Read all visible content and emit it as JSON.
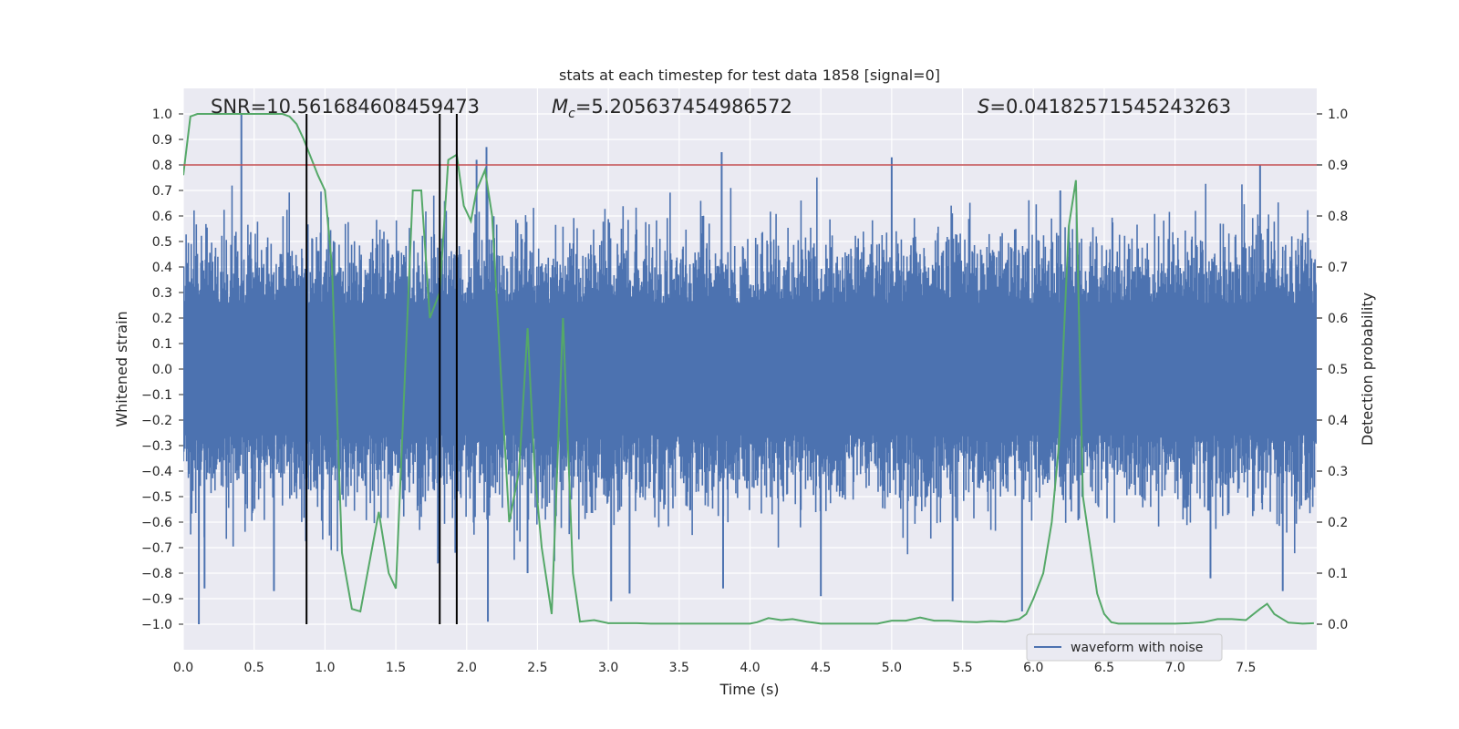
{
  "chart_data": {
    "type": "line",
    "title": "stats at each timestep for test data 1858 [signal=0]",
    "xlabel": "Time (s)",
    "ylabel_left": "Whitened strain",
    "ylabel_right": "Detection probability",
    "xlim": [
      0.0,
      8.0
    ],
    "ylim_left": [
      -1.1,
      1.1
    ],
    "ylim_right": [
      -0.05,
      1.05
    ],
    "x_ticks": [
      "0.0",
      "0.5",
      "1.0",
      "1.5",
      "2.0",
      "2.5",
      "3.0",
      "3.5",
      "4.0",
      "4.5",
      "5.0",
      "5.5",
      "6.0",
      "6.5",
      "7.0",
      "7.5"
    ],
    "y_ticks_left": [
      "-1.0",
      "-0.9",
      "-0.8",
      "-0.7",
      "-0.6",
      "-0.5",
      "-0.4",
      "-0.3",
      "-0.2",
      "-0.1",
      "0.0",
      "0.1",
      "0.2",
      "0.3",
      "0.4",
      "0.5",
      "0.6",
      "0.7",
      "0.8",
      "0.9",
      "1.0"
    ],
    "y_ticks_right": [
      "0.0",
      "0.1",
      "0.2",
      "0.3",
      "0.4",
      "0.5",
      "0.6",
      "0.7",
      "0.8",
      "0.9",
      "1.0"
    ],
    "grid": true,
    "legend": {
      "position": "bottom-right",
      "entries": [
        "waveform with noise"
      ]
    },
    "annotations": {
      "snr": "SNR=10.561684608459473",
      "mc_symbol": "M",
      "mc_sub": "c",
      "mc_value": "=5.205637454986572",
      "s_symbol": "S",
      "s_value": "=0.041825715452432​63"
    },
    "threshold": {
      "value": 0.9,
      "axis": "right",
      "color": "#c44e52"
    },
    "vertical_markers_x": [
      0.87,
      1.81,
      1.93
    ],
    "waveform": {
      "name": "waveform with noise",
      "color": "#4c72b0",
      "typical_amplitude": 0.42,
      "spikes": [
        {
          "x": 0.41,
          "y": 1.0
        },
        {
          "x": 0.11,
          "y": -1.0
        },
        {
          "x": 0.15,
          "y": -0.86
        },
        {
          "x": 0.64,
          "y": -0.87
        },
        {
          "x": 1.8,
          "y": -0.76
        },
        {
          "x": 1.92,
          "y": -0.72
        },
        {
          "x": 2.07,
          "y": 0.82
        },
        {
          "x": 2.14,
          "y": 0.87
        },
        {
          "x": 2.15,
          "y": -0.99
        },
        {
          "x": 3.02,
          "y": -0.91
        },
        {
          "x": 3.15,
          "y": -0.88
        },
        {
          "x": 3.8,
          "y": 0.85
        },
        {
          "x": 3.81,
          "y": -0.86
        },
        {
          "x": 4.5,
          "y": -0.89
        },
        {
          "x": 5.0,
          "y": 0.83
        },
        {
          "x": 5.43,
          "y": -0.91
        },
        {
          "x": 5.92,
          "y": -0.95
        },
        {
          "x": 6.19,
          "y": 0.7
        },
        {
          "x": 7.6,
          "y": 0.8
        },
        {
          "x": 7.76,
          "y": -0.87
        },
        {
          "x": 2.43,
          "y": -0.8
        },
        {
          "x": 7.25,
          "y": -0.82
        }
      ]
    },
    "series": [
      {
        "name": "detection probability",
        "axis": "right",
        "color": "#55a868",
        "x": [
          0.0,
          0.05,
          0.1,
          0.2,
          0.3,
          0.4,
          0.5,
          0.6,
          0.7,
          0.75,
          0.8,
          0.85,
          0.95,
          1.0,
          1.05,
          1.12,
          1.19,
          1.25,
          1.38,
          1.45,
          1.5,
          1.62,
          1.68,
          1.74,
          1.81,
          1.87,
          1.93,
          1.98,
          2.03,
          2.07,
          2.13,
          2.18,
          2.24,
          2.3,
          2.37,
          2.43,
          2.48,
          2.53,
          2.6,
          2.68,
          2.75,
          2.8,
          2.9,
          3.0,
          3.1,
          3.2,
          3.3,
          3.4,
          3.5,
          3.6,
          3.7,
          3.8,
          3.9,
          4.0,
          4.05,
          4.13,
          4.22,
          4.3,
          4.4,
          4.5,
          4.6,
          4.7,
          4.8,
          4.9,
          5.0,
          5.1,
          5.2,
          5.3,
          5.4,
          5.5,
          5.6,
          5.7,
          5.8,
          5.9,
          5.95,
          6.0,
          6.07,
          6.13,
          6.18,
          6.25,
          6.3,
          6.35,
          6.45,
          6.5,
          6.55,
          6.6,
          6.7,
          6.8,
          6.9,
          7.0,
          7.1,
          7.2,
          7.3,
          7.4,
          7.5,
          7.6,
          7.65,
          7.7,
          7.8,
          7.9,
          7.98
        ],
        "y": [
          0.88,
          0.995,
          1.0,
          1.0,
          1.0,
          1.0,
          1.0,
          1.0,
          1.0,
          0.995,
          0.98,
          0.95,
          0.88,
          0.85,
          0.7,
          0.14,
          0.03,
          0.025,
          0.22,
          0.1,
          0.07,
          0.85,
          0.85,
          0.6,
          0.65,
          0.91,
          0.92,
          0.82,
          0.79,
          0.85,
          0.89,
          0.8,
          0.5,
          0.2,
          0.3,
          0.58,
          0.3,
          0.15,
          0.02,
          0.6,
          0.1,
          0.005,
          0.008,
          0.002,
          0.002,
          0.002,
          0.001,
          0.001,
          0.001,
          0.001,
          0.001,
          0.001,
          0.001,
          0.001,
          0.004,
          0.012,
          0.008,
          0.01,
          0.005,
          0.001,
          0.001,
          0.001,
          0.001,
          0.001,
          0.007,
          0.007,
          0.013,
          0.007,
          0.007,
          0.005,
          0.004,
          0.006,
          0.005,
          0.01,
          0.02,
          0.05,
          0.1,
          0.2,
          0.35,
          0.78,
          0.87,
          0.25,
          0.06,
          0.02,
          0.004,
          0.001,
          0.001,
          0.001,
          0.001,
          0.001,
          0.002,
          0.004,
          0.01,
          0.01,
          0.008,
          0.03,
          0.04,
          0.02,
          0.003,
          0.001,
          0.002
        ]
      }
    ]
  }
}
